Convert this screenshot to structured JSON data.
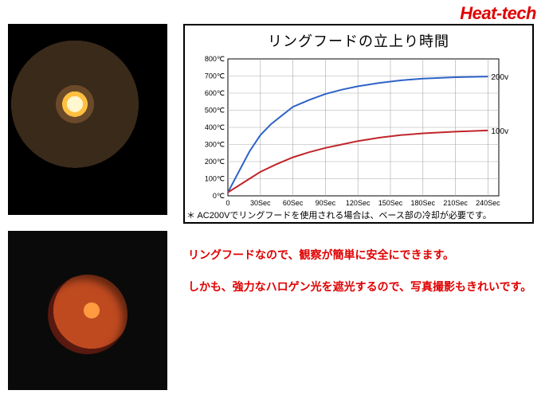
{
  "brand": {
    "text": "Heat-tech",
    "color": "#e00000"
  },
  "chart": {
    "title": "リングフードの立上り時間",
    "type": "line",
    "xlim": [
      0,
      250
    ],
    "ylim": [
      0,
      800
    ],
    "xtick_values": [
      0,
      30,
      60,
      90,
      120,
      150,
      180,
      210,
      240
    ],
    "xtick_labels": [
      "0",
      "30Sec",
      "60Sec",
      "90Sec",
      "120Sec",
      "150Sec",
      "180Sec",
      "210Sec",
      "240Sec"
    ],
    "ytick_step": 100,
    "y_unit_suffix": "℃",
    "grid_color": "#a9a9a9",
    "axis_color": "#000000",
    "background_color": "#ffffff",
    "tick_fontsize": 9,
    "title_fontsize": 18,
    "line_width": 2,
    "series": [
      {
        "name": "200v",
        "label": "200v",
        "color": "#2e63c8",
        "points": [
          [
            0,
            20
          ],
          [
            10,
            140
          ],
          [
            20,
            260
          ],
          [
            30,
            355
          ],
          [
            40,
            420
          ],
          [
            50,
            470
          ],
          [
            60,
            520
          ],
          [
            75,
            560
          ],
          [
            90,
            595
          ],
          [
            105,
            620
          ],
          [
            120,
            640
          ],
          [
            140,
            660
          ],
          [
            160,
            675
          ],
          [
            180,
            685
          ],
          [
            210,
            693
          ],
          [
            240,
            697
          ]
        ]
      },
      {
        "name": "100v",
        "label": "100v",
        "color": "#c0252a",
        "points": [
          [
            0,
            20
          ],
          [
            10,
            60
          ],
          [
            20,
            100
          ],
          [
            30,
            140
          ],
          [
            45,
            185
          ],
          [
            60,
            225
          ],
          [
            75,
            255
          ],
          [
            90,
            280
          ],
          [
            105,
            300
          ],
          [
            120,
            320
          ],
          [
            140,
            340
          ],
          [
            160,
            355
          ],
          [
            180,
            365
          ],
          [
            210,
            375
          ],
          [
            240,
            382
          ]
        ]
      }
    ]
  },
  "footnote": "＊ AC200Vでリングフードを使用される場合は、ベース部の冷却が必要です。",
  "notes": {
    "color": "#e00000",
    "line1": "リングフードなので、観察が簡単に安全にできます。",
    "line2": "しかも、強力なハロゲン光を遮光するので、写真撮影もきれいです。"
  },
  "images": {
    "reflector_alt": "halogen-ring-reflector-photo",
    "ring_alt": "ring-hood-sample-heated-photo"
  }
}
